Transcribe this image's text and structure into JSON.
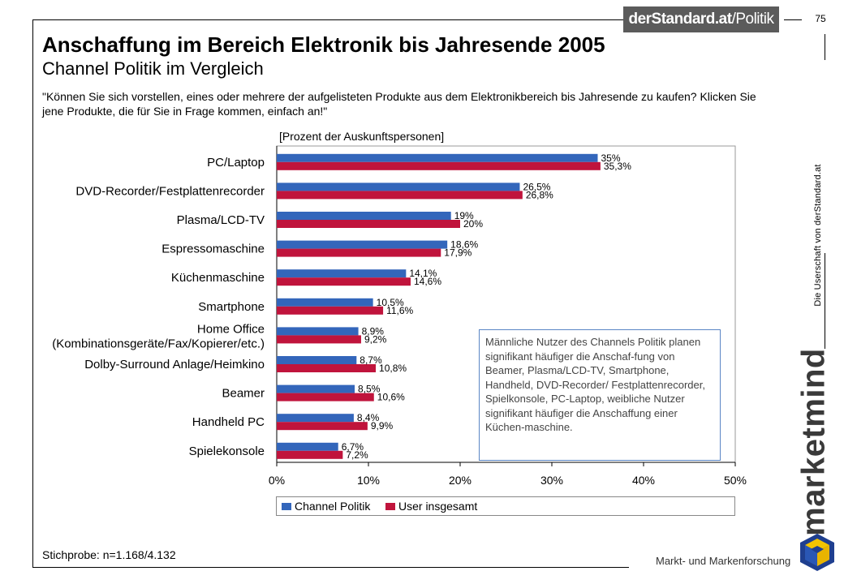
{
  "header": {
    "logo_text": "derStandard.at",
    "logo_slash": "/Politik",
    "page_number": "75",
    "side_text": "Die Userschaft von derStandard.at"
  },
  "title": "Anschaffung im Bereich Elektronik bis Jahresende 2005",
  "subtitle": "Channel Politik im Vergleich",
  "question": "\"Können Sie sich vorstellen, eines oder mehrere der aufgelisteten Produkte aus dem Elektronikbereich bis Jahresende zu kaufen? Klicken Sie jene Produkte, die für Sie in Frage kommen, einfach an!\"",
  "unit_label": "[Prozent der Auskunftspersonen]",
  "note": "Männliche Nutzer des Channels Politik planen signifikant häufiger die Anschaf-fung von Beamer, Plasma/LCD-TV, Smartphone, Handheld, DVD-Recorder/ Festplattenrecorder, Spielkonsole, PC-Laptop, weibliche Nutzer signifikant häufiger die Anschaffung einer Küchen-maschine.",
  "sample": "Stichprobe: n=1.168/4.132",
  "brand": "marketmind",
  "tagline": "Markt- und Markenforschung",
  "colors": {
    "channel": "#3366bb",
    "user": "#c0143c",
    "note_border": "#5a86c5"
  },
  "chart_data": {
    "type": "bar",
    "orientation": "horizontal",
    "categories": [
      [
        "PC/Laptop"
      ],
      [
        "DVD-Recorder/Festplattenrecorder"
      ],
      [
        "Plasma/LCD-TV"
      ],
      [
        "Espressomaschine"
      ],
      [
        "Küchenmaschine"
      ],
      [
        "Smartphone"
      ],
      [
        "Home Office",
        "(Kombinationsgeräte/Fax/Kopierer/etc.)"
      ],
      [
        "Dolby-Surround Anlage/Heimkino"
      ],
      [
        "Beamer"
      ],
      [
        "Handheld PC"
      ],
      [
        "Spielekonsole"
      ]
    ],
    "series": [
      {
        "name": "Channel Politik",
        "values": [
          35,
          26.5,
          19,
          18.6,
          14.1,
          10.5,
          8.9,
          8.7,
          8.5,
          8.4,
          6.7
        ],
        "labels": [
          "35%",
          "26,5%",
          "19%",
          "18,6%",
          "14,1%",
          "10,5%",
          "8,9%",
          "8,7%",
          "8,5%",
          "8,4%",
          "6,7%"
        ]
      },
      {
        "name": "User insgesamt",
        "values": [
          35.3,
          26.8,
          20,
          17.9,
          14.6,
          11.6,
          9.2,
          10.8,
          10.6,
          9.9,
          7.2
        ],
        "labels": [
          "35,3%",
          "26,8%",
          "20%",
          "17,9%",
          "14,6%",
          "11,6%",
          "9,2%",
          "10,8%",
          "10,6%",
          "9,9%",
          "7,2%"
        ]
      }
    ],
    "xlim": [
      0,
      50
    ],
    "xticks": [
      0,
      10,
      20,
      30,
      40,
      50
    ],
    "xtick_labels": [
      "0%",
      "10%",
      "20%",
      "30%",
      "40%",
      "50%"
    ],
    "grid": false,
    "legend_position": "bottom"
  }
}
